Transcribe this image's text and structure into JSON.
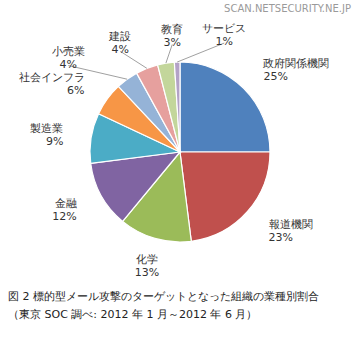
{
  "chart_data": {
    "type": "pie",
    "title": "図 2 標的型メール攻撃のターゲットとなった組織の業種別割合",
    "subtitle": "（東京 SOC 調べ: 2012 年 1 月～2012 年 6 月）",
    "annotations": [
      "SCAN.NETSECURITY.NE.JP"
    ],
    "categories": [
      "政府関係機関",
      "報道機関",
      "化学",
      "金融",
      "製造業",
      "社会インフラ",
      "小売業",
      "建設",
      "教育",
      "サービス"
    ],
    "values": [
      25,
      23,
      13,
      12,
      9,
      6,
      4,
      4,
      3,
      1
    ],
    "value_labels": [
      "25%",
      "23%",
      "13%",
      "12%",
      "9%",
      "6%",
      "4%",
      "4%",
      "3%",
      "1%"
    ],
    "colors": [
      "#4f81bd",
      "#c0504d",
      "#9bbb59",
      "#8064a2",
      "#4bacc6",
      "#f79646",
      "#95b3d7",
      "#e6a09e",
      "#c3d69b",
      "#b3a2c7"
    ],
    "data_labels": true
  }
}
